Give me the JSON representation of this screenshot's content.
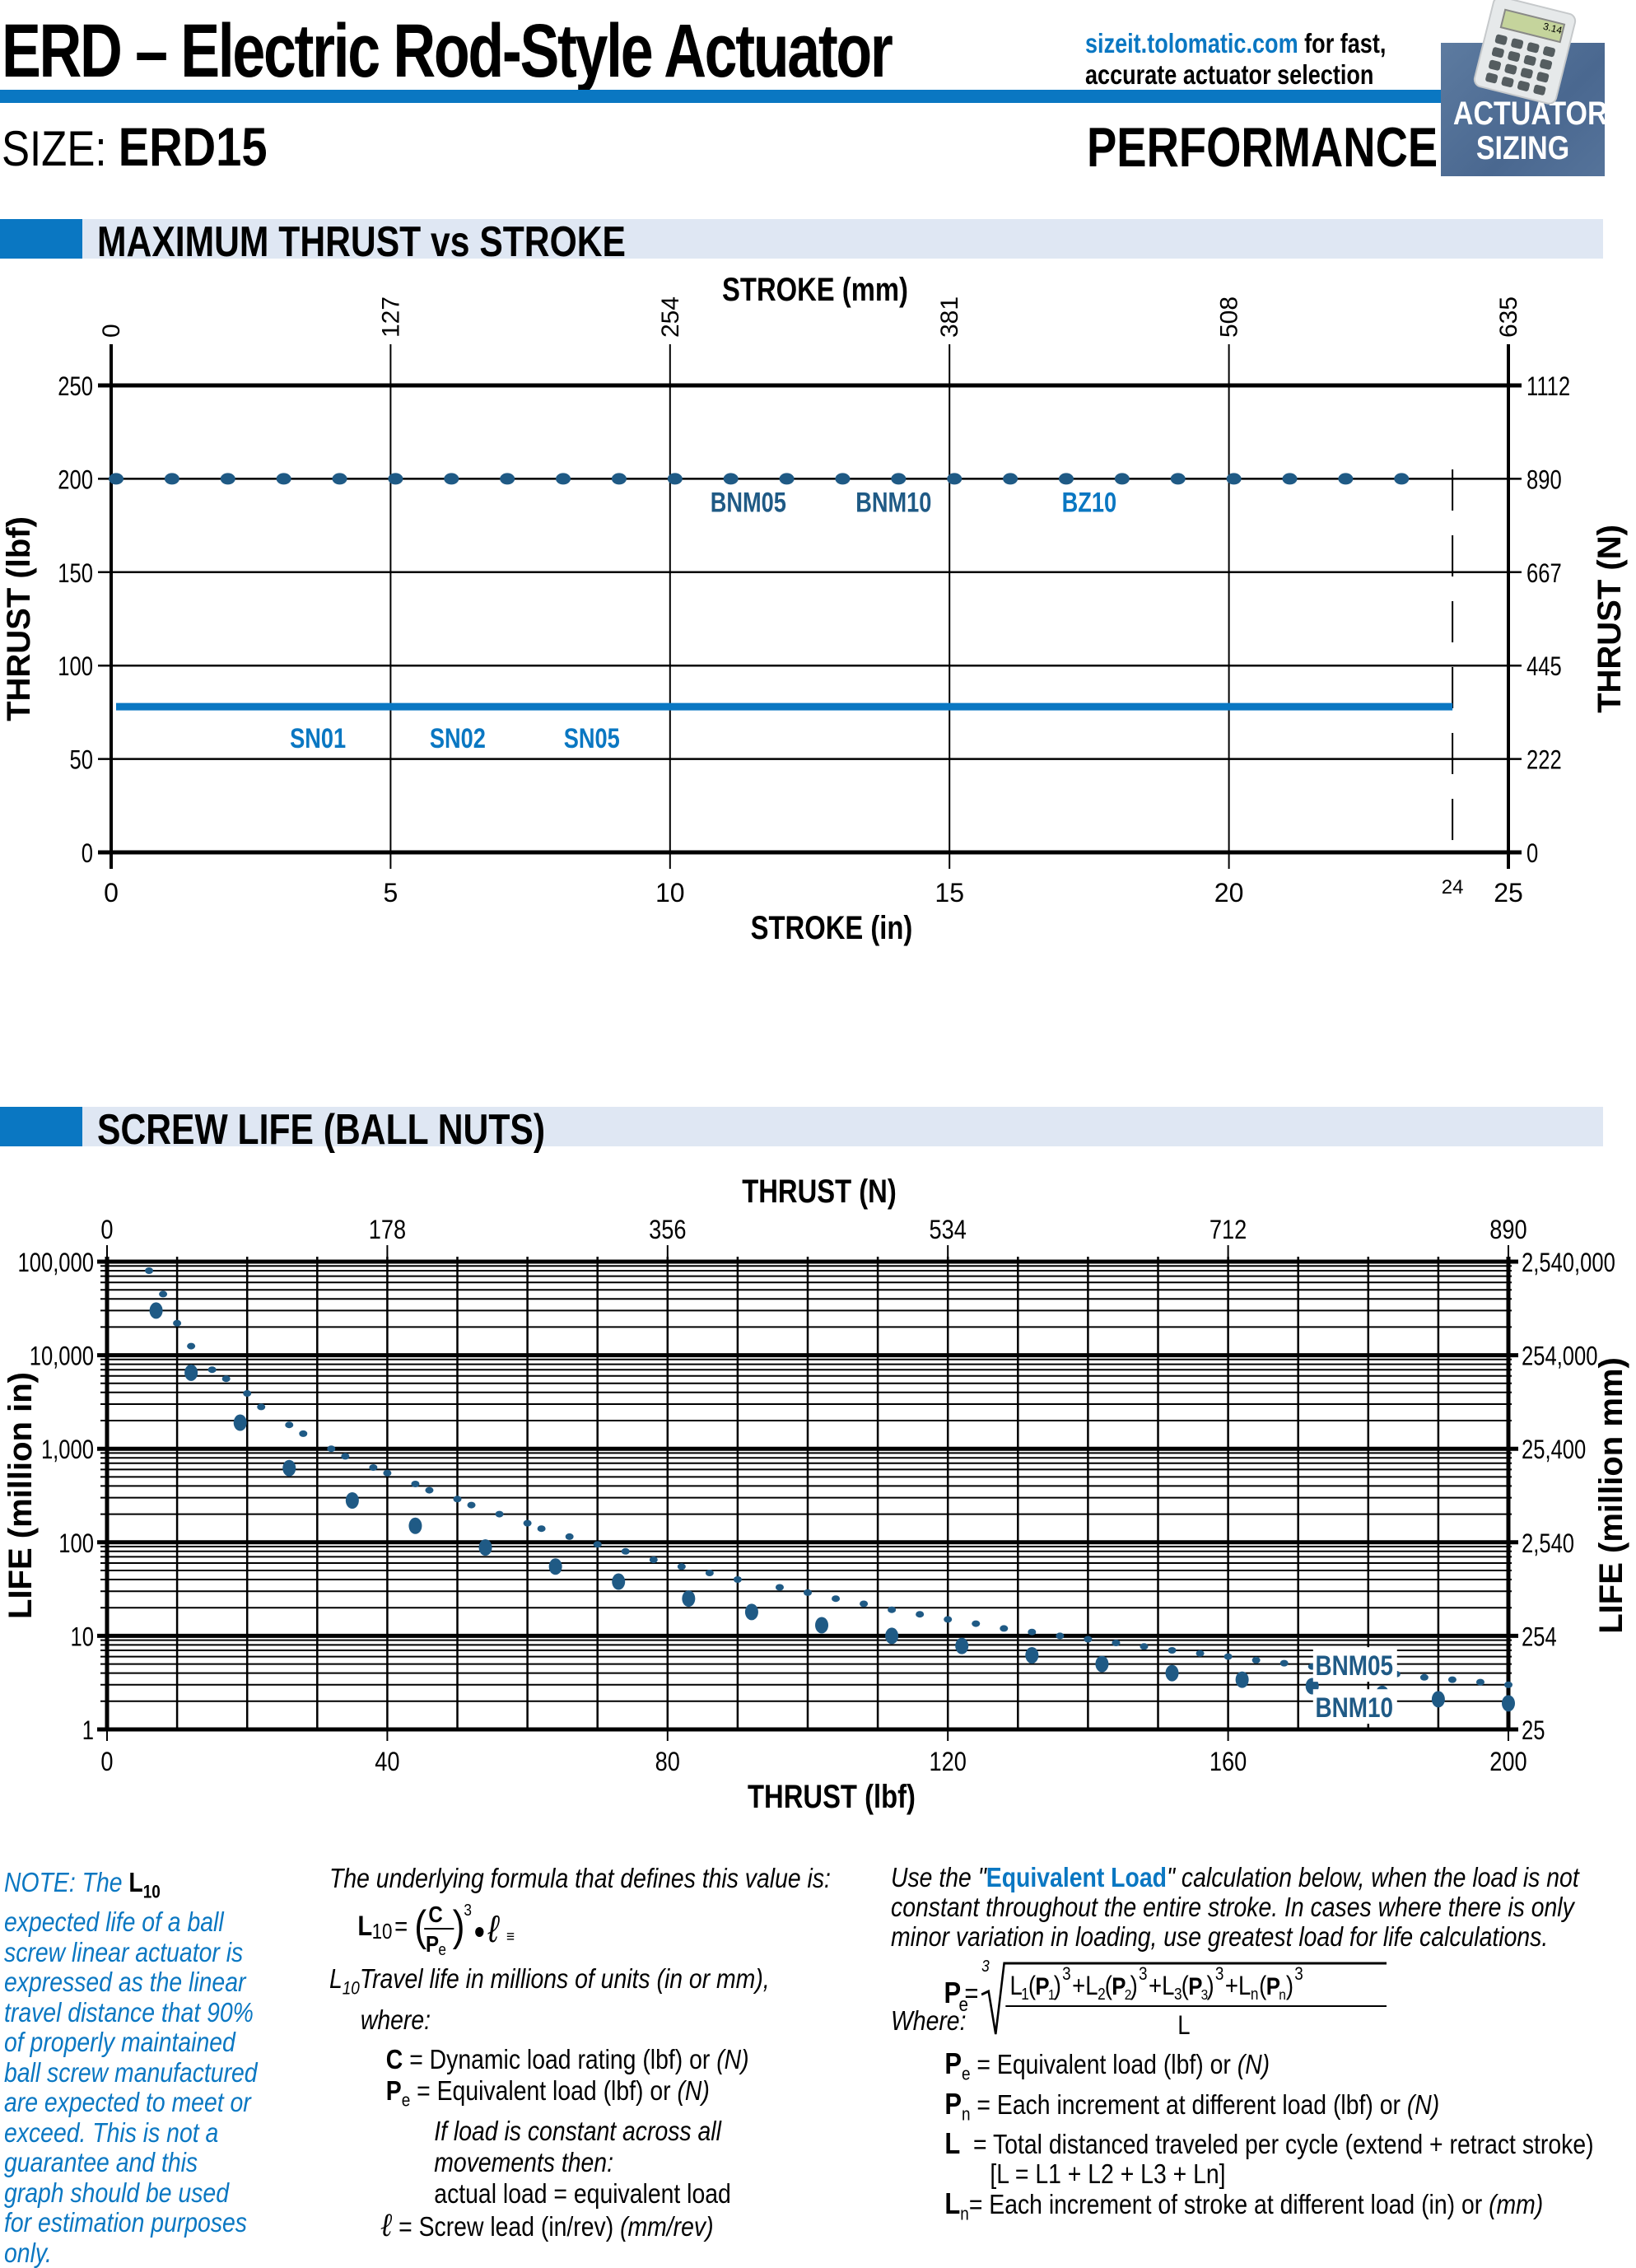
{
  "header": {
    "title": "ERD – Electric Rod-Style Actuator",
    "site_url": "sizeit.tolomatic.com",
    "site_text_1": " for fast,",
    "site_text_2": "accurate actuator selection",
    "badge_line1": "ACTUATOR",
    "badge_line2": "SIZING",
    "calc_display": "3.14",
    "size_label": "SIZE:",
    "size_value": "ERD15",
    "page_section": "PERFORMANCE"
  },
  "sections": {
    "thrust_title": "MAXIMUM THRUST vs STROKE",
    "life_title": "SCREW LIFE (BALL NUTS)"
  },
  "chart_data": [
    {
      "type": "line",
      "title": "MAXIMUM THRUST vs STROKE",
      "xlabel": "STROKE (in)",
      "xlabel_top": "STROKE (mm)",
      "ylabel": "THRUST (lbf)",
      "ylabel_right": "THRUST (N)",
      "xlim": [
        0,
        25
      ],
      "ylim": [
        0,
        250
      ],
      "x_ticks": [
        0,
        5,
        10,
        15,
        20,
        25
      ],
      "x_tick_labels": [
        "0",
        "5",
        "10",
        "15",
        "20",
        "25"
      ],
      "x_top_tick_labels": [
        "0",
        "127",
        "254",
        "381",
        "508",
        "635"
      ],
      "y_ticks": [
        0,
        50,
        100,
        150,
        200,
        250
      ],
      "y_tick_labels": [
        "0",
        "50",
        "100",
        "150",
        "200",
        "250"
      ],
      "y_right_tick_labels": [
        "0",
        "222",
        "445",
        "667",
        "890",
        "1112"
      ],
      "max_stroke_marker": {
        "x": 24,
        "label": "24",
        "style": "dashed"
      },
      "grid": true,
      "series": [
        {
          "name": "BNM05 / BNM10 / BZ10",
          "labels": [
            "BNM05",
            "BNM10",
            "BZ10"
          ],
          "style": "dotted",
          "color": "#1f5a85",
          "x": [
            0,
            23.5
          ],
          "y": [
            200,
            200
          ]
        },
        {
          "name": "SN01 / SN02 / SN05",
          "labels": [
            "SN01",
            "SN02",
            "SN05"
          ],
          "style": "solid",
          "color": "#0a77c2",
          "x": [
            0,
            24
          ],
          "y": [
            78,
            78
          ]
        }
      ]
    },
    {
      "type": "scatter",
      "title": "SCREW LIFE (BALL NUTS)",
      "xlabel": "THRUST (lbf)",
      "xlabel_top": "THRUST (N)",
      "ylabel": "LIFE (million in)",
      "ylabel_right": "LIFE (million mm)",
      "xlim": [
        0,
        200
      ],
      "ylim": [
        1,
        100000
      ],
      "yscale": "log",
      "x_ticks": [
        0,
        40,
        80,
        120,
        160,
        200
      ],
      "x_tick_labels": [
        "0",
        "40",
        "80",
        "120",
        "160",
        "200"
      ],
      "x_top_tick_labels": [
        "0",
        "178",
        "356",
        "534",
        "712",
        "890"
      ],
      "y_ticks": [
        1,
        10,
        100,
        1000,
        10000,
        100000
      ],
      "y_tick_labels": [
        "1",
        "10",
        "100",
        "1,000",
        "10,000",
        "100,000"
      ],
      "y_right_tick_labels": [
        "25",
        "254",
        "2,540",
        "25,400",
        "254,000",
        "2,540,000"
      ],
      "grid": true,
      "series": [
        {
          "name": "BNM05",
          "marker": "small",
          "color": "#1f5a85",
          "x": [
            6,
            8,
            10,
            12,
            15,
            17,
            20,
            22,
            26,
            28,
            32,
            34,
            38,
            40,
            44,
            46,
            50,
            52,
            56,
            60,
            62,
            66,
            70,
            74,
            78,
            82,
            86,
            90,
            96,
            100,
            104,
            108,
            112,
            116,
            120,
            124,
            128,
            132,
            136,
            140,
            144,
            148,
            152,
            156,
            160,
            164,
            168,
            172,
            176,
            180,
            184,
            188,
            192,
            196,
            200
          ],
          "y": [
            80000,
            45000,
            22000,
            12500,
            7000,
            5600,
            3900,
            2800,
            1800,
            1450,
            1000,
            830,
            630,
            550,
            420,
            360,
            290,
            250,
            200,
            160,
            140,
            115,
            95,
            80,
            65,
            55,
            47,
            40,
            33,
            29,
            25,
            22,
            19,
            17,
            15,
            13.5,
            12,
            11,
            10,
            9.2,
            8.4,
            7.7,
            7,
            6.5,
            6,
            5.5,
            5.1,
            4.7,
            4.4,
            4.1,
            3.9,
            3.6,
            3.4,
            3.2,
            3.0
          ]
        },
        {
          "name": "BNM10",
          "marker": "large",
          "color": "#1f5a85",
          "x": [
            7,
            12,
            19,
            26,
            35,
            44,
            54,
            64,
            73,
            83,
            92,
            102,
            112,
            122,
            132,
            142,
            152,
            162,
            172,
            182,
            190,
            200
          ],
          "y": [
            30000,
            6500,
            1900,
            620,
            280,
            150,
            88,
            55,
            38,
            25,
            18,
            13,
            10,
            7.8,
            6.2,
            5,
            4,
            3.4,
            2.9,
            2.4,
            2.1,
            1.9
          ]
        }
      ],
      "annotations": [
        "BNM05",
        "BNM10"
      ]
    }
  ],
  "notes": {
    "note_prefix": "NOTE: The ",
    "note_L": "L",
    "note_sub": "10",
    "note_text": " expected life of a ball screw linear actuator is expressed as the linear travel distance that 90% of properly maintained ball screw manufactured are expected to meet or exceed. This is not a guarantee and this graph should be used for estimation purposes only.",
    "formula_intro": "The underlying formula that defines this value is:",
    "travel_life": "Travel life in millions of units (in or mm),",
    "where": "where:",
    "c_def": " = Dynamic load rating (lbf) or ",
    "pe_def": " = Equivalent load (lbf) or ",
    "if_load_1": "If load is constant across all",
    "if_load_2": "movements then:",
    "actual_eq": "actual load = equivalent load",
    "lead_def": " = Screw lead (in/rev) ",
    "lead_unit_mm": "(mm/rev)",
    "unit_n": "(N)",
    "eq_intro_1": "Use the \"",
    "eq_link": "Equivalent Load",
    "eq_intro_2": "\" calculation below, when the load is not",
    "eq_intro_3": "constant throughout the entire stroke. In cases where there is only",
    "eq_intro_4": "minor variation in loading, use greatest load for life calculations.",
    "where_cap": "Where:",
    "pe_def2": " = Equivalent load (lbf) or ",
    "pn_def": " = Each increment at different load (lbf) or ",
    "l_def": " = Total distanced traveled per cycle (extend + retract stroke)",
    "l_sum": "[L = L1 + L2 + L3 + Ln]",
    "ln_def": "= Each increment of stroke at different load (in) or ",
    "ln_unit": "(mm)"
  }
}
